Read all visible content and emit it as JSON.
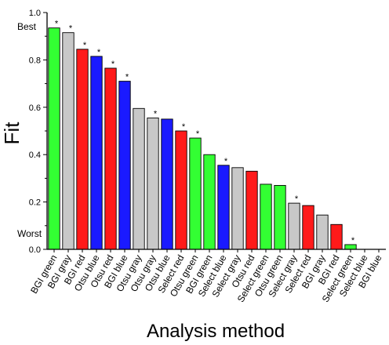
{
  "chart_data": {
    "type": "bar",
    "xlabel": "Analysis method",
    "ylabel": "Fit",
    "ylim": [
      0.0,
      1.0
    ],
    "yticks": [
      "0.0",
      "0.2",
      "0.4",
      "0.6",
      "0.8",
      "1.0"
    ],
    "annotations": {
      "best": "Best",
      "worst": "Worst"
    },
    "significance_marker": "*",
    "colors": {
      "green": "#33ff33",
      "gray": "#c8c8c8",
      "red": "#ff1a1a",
      "blue": "#1a1aff"
    },
    "categories": [
      "BGI green",
      "BGI gray",
      "BGI red",
      "Otsu blue",
      "Otsu red",
      "BGI blue",
      "Otsu gray",
      "Otsu gray",
      "Otsu blue",
      "Select red",
      "Otsu green",
      "BGI green",
      "Select blue",
      "Select gray",
      "Otsu red",
      "Select green",
      "Otsu green",
      "Select gray",
      "Select red",
      "BGI gray",
      "BGI red",
      "Select green",
      "Select blue",
      "BGI blue"
    ],
    "values": [
      0.935,
      0.915,
      0.845,
      0.815,
      0.765,
      0.71,
      0.595,
      0.555,
      0.55,
      0.5,
      0.47,
      0.4,
      0.355,
      0.345,
      0.33,
      0.275,
      0.27,
      0.195,
      0.185,
      0.145,
      0.105,
      0.02,
      0.0,
      0.0
    ],
    "bar_colors": [
      "green",
      "gray",
      "red",
      "blue",
      "red",
      "blue",
      "gray",
      "gray",
      "blue",
      "red",
      "green",
      "green",
      "blue",
      "gray",
      "red",
      "green",
      "green",
      "gray",
      "red",
      "gray",
      "red",
      "green",
      "blue",
      "blue"
    ],
    "significant": [
      true,
      true,
      true,
      true,
      true,
      true,
      false,
      true,
      false,
      true,
      true,
      false,
      true,
      false,
      false,
      false,
      false,
      true,
      false,
      false,
      false,
      true,
      false,
      false
    ]
  }
}
